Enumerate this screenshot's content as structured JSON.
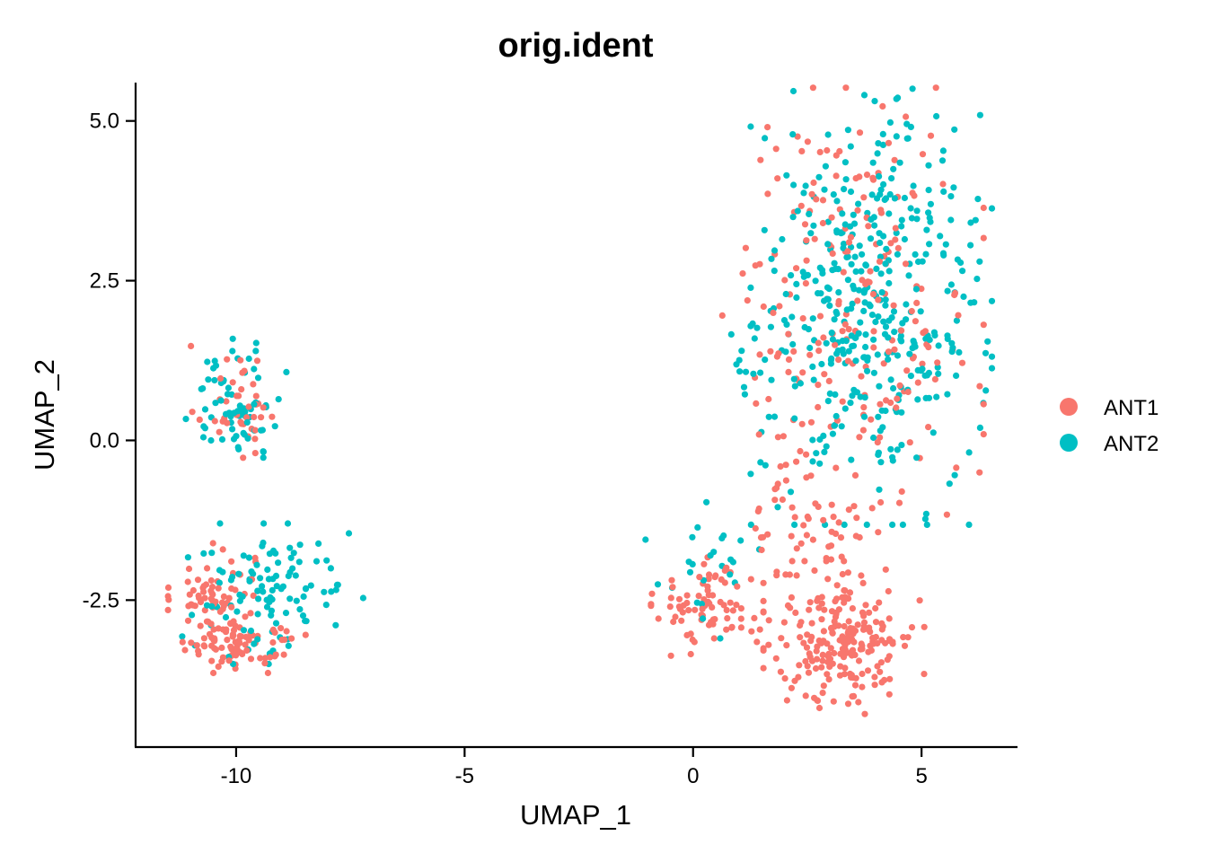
{
  "chart_data": {
    "type": "scatter",
    "title": "orig.ident",
    "xlabel": "UMAP_1",
    "ylabel": "UMAP_2",
    "xlim": [
      -12.2,
      7.1
    ],
    "ylim": [
      -4.8,
      5.6
    ],
    "xticks": [
      -10,
      -5,
      0,
      5
    ],
    "xtick_labels": [
      "-10",
      "-5",
      "0",
      "5"
    ],
    "yticks": [
      -2.5,
      0.0,
      2.5,
      5.0
    ],
    "ytick_labels": [
      "-2.5",
      "0.0",
      "2.5",
      "5.0"
    ],
    "grid": false,
    "legend_position": "right",
    "series": [
      {
        "name": "ANT1",
        "color": "#F8766D",
        "clusters": [
          {
            "cx": -10.0,
            "cy": 0.6,
            "sx": 0.45,
            "sy": 0.45,
            "n": 40
          },
          {
            "cx": -10.5,
            "cy": -2.6,
            "sx": 0.45,
            "sy": 0.45,
            "n": 90
          },
          {
            "cx": -9.8,
            "cy": -3.2,
            "sx": 0.6,
            "sy": 0.2,
            "n": 60
          },
          {
            "cx": 0.4,
            "cy": -2.6,
            "sx": 0.6,
            "sy": 0.35,
            "n": 80
          },
          {
            "cx": 3.3,
            "cy": -3.1,
            "sx": 0.8,
            "sy": 0.55,
            "n": 220
          },
          {
            "cx": 3.5,
            "cy": 2.0,
            "sx": 1.3,
            "sy": 1.6,
            "n": 220
          },
          {
            "cx": 2.6,
            "cy": -1.2,
            "sx": 0.6,
            "sy": 0.5,
            "n": 40
          }
        ]
      },
      {
        "name": "ANT2",
        "color": "#00BFC4",
        "clusters": [
          {
            "cx": -10.0,
            "cy": 0.6,
            "sx": 0.5,
            "sy": 0.45,
            "n": 70
          },
          {
            "cx": -9.2,
            "cy": -2.4,
            "sx": 0.9,
            "sy": 0.5,
            "n": 110
          },
          {
            "cx": 3.9,
            "cy": 2.2,
            "sx": 1.2,
            "sy": 1.6,
            "n": 420
          },
          {
            "cx": 1.2,
            "cy": 1.1,
            "sx": 0.3,
            "sy": 0.3,
            "n": 12
          },
          {
            "cx": 0.2,
            "cy": -2.0,
            "sx": 0.7,
            "sy": 0.5,
            "n": 25
          }
        ]
      }
    ]
  }
}
